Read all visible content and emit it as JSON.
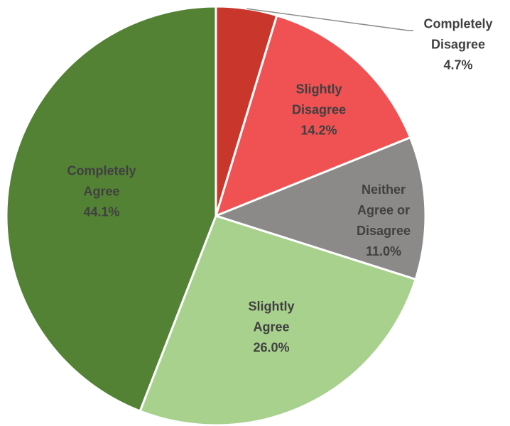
{
  "chart_data": {
    "type": "pie",
    "categories": [
      "Completely Disagree",
      "Slightly Disagree",
      "Neither Agree or Disagree",
      "Slightly Agree",
      "Completely Agree"
    ],
    "values": [
      4.7,
      14.2,
      11.0,
      26.0,
      44.1
    ],
    "value_labels": [
      "4.7%",
      "14.2%",
      "11.0%",
      "26.0%",
      "44.1%"
    ],
    "colors": [
      "#c9372c",
      "#f05153",
      "#8c8a88",
      "#a9d18e",
      "#548235"
    ]
  }
}
